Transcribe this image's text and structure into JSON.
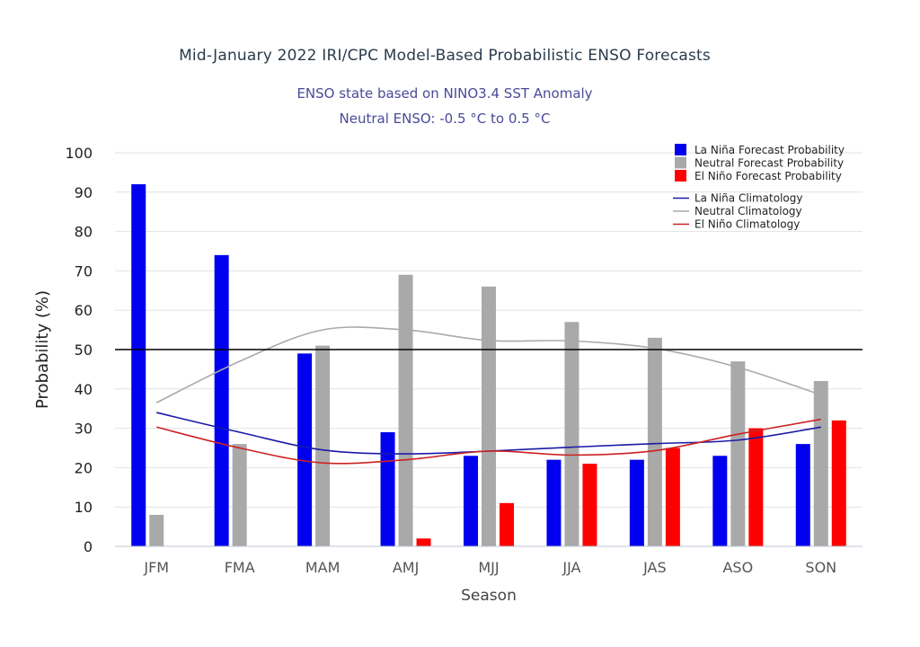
{
  "chart_data": {
    "type": "bar",
    "title": "Mid-January 2022 IRI/CPC Model-Based Probabilistic ENSO Forecasts",
    "subtitle_lines": [
      "ENSO state based on NINO3.4 SST Anomaly",
      "Neutral ENSO: -0.5 °C to 0.5 °C"
    ],
    "xlabel": "Season",
    "ylabel": "Probability (%)",
    "ylim": [
      0,
      100
    ],
    "yticks": [
      0,
      10,
      20,
      30,
      40,
      50,
      60,
      70,
      80,
      90,
      100
    ],
    "reference_line": 50,
    "grid": true,
    "legend_position": "top-right",
    "categories": [
      "JFM",
      "FMA",
      "MAM",
      "AMJ",
      "MJJ",
      "JJA",
      "JAS",
      "ASO",
      "SON"
    ],
    "series": [
      {
        "name": "La Niña Forecast Probability",
        "kind": "bar",
        "color": "#0000ee",
        "values": [
          92,
          74,
          49,
          29,
          23,
          22,
          22,
          23,
          26
        ]
      },
      {
        "name": "Neutral Forecast Probability",
        "kind": "bar",
        "color": "#a9a9a9",
        "values": [
          8,
          26,
          51,
          69,
          66,
          57,
          53,
          47,
          42
        ]
      },
      {
        "name": "El Niño Forecast Probability",
        "kind": "bar",
        "color": "#ff0000",
        "values": [
          0,
          0,
          0,
          2,
          11,
          21,
          25,
          30,
          32
        ]
      },
      {
        "name": "La Niña Climatology",
        "kind": "line",
        "color": "#1a1aa8",
        "values": [
          34,
          29,
          24.5,
          23.5,
          24.2,
          25.2,
          26.1,
          27,
          30.3
        ]
      },
      {
        "name": "Neutral Climatology",
        "kind": "line",
        "color": "#aaaaaa",
        "values": [
          36.5,
          47,
          55,
          55,
          52.3,
          52.2,
          50.3,
          45.5,
          38.5
        ]
      },
      {
        "name": "El Niño Climatology",
        "kind": "line",
        "color": "#cc2222",
        "values": [
          30.3,
          25,
          21.2,
          22,
          24.2,
          23.2,
          24.3,
          28.5,
          32.3
        ]
      }
    ]
  }
}
